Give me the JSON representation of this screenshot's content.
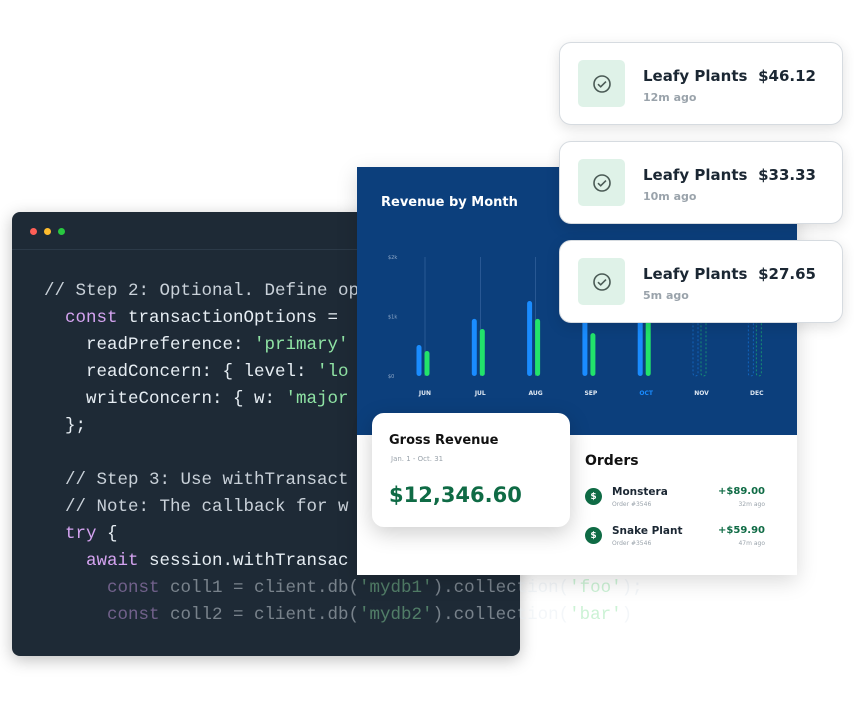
{
  "code_window": {
    "lines": [
      {
        "indent": 0,
        "tokens": [
          [
            "// Step 2: Optional. Define op",
            "comment"
          ]
        ]
      },
      {
        "indent": 1,
        "tokens": [
          [
            "const ",
            "kw"
          ],
          [
            "transactionOptions = ",
            "plain"
          ]
        ]
      },
      {
        "indent": 2,
        "tokens": [
          [
            "readPreference: ",
            "plain"
          ],
          [
            "'primary'",
            "str"
          ]
        ]
      },
      {
        "indent": 2,
        "tokens": [
          [
            "readConcern: { level: ",
            "plain"
          ],
          [
            "'lo",
            "str"
          ]
        ]
      },
      {
        "indent": 2,
        "tokens": [
          [
            "writeConcern: { w: ",
            "plain"
          ],
          [
            "'major",
            "str"
          ]
        ]
      },
      {
        "indent": 1,
        "tokens": [
          [
            "};",
            "plain"
          ]
        ]
      },
      {
        "indent": 0,
        "tokens": []
      },
      {
        "indent": 1,
        "tokens": [
          [
            "// Step 3: Use withTransact",
            "comment"
          ]
        ]
      },
      {
        "indent": 1,
        "tokens": [
          [
            "// Note: The callback for w",
            "comment"
          ]
        ]
      },
      {
        "indent": 1,
        "tokens": [
          [
            "try ",
            "kw"
          ],
          [
            "{",
            "plain"
          ]
        ]
      },
      {
        "indent": 2,
        "tokens": [
          [
            "await ",
            "kw"
          ],
          [
            "session.withTransac",
            "plain"
          ]
        ]
      },
      {
        "indent": 3,
        "faded": true,
        "tokens": [
          [
            "const ",
            "kw"
          ],
          [
            "coll1 = client.db(",
            "plain"
          ],
          [
            "'mydb1'",
            "str"
          ],
          [
            ").collection(",
            "plain"
          ],
          [
            "'foo'",
            "str"
          ],
          [
            ");",
            "plain"
          ]
        ]
      },
      {
        "indent": 3,
        "faded": true,
        "tokens": [
          [
            "const ",
            "kw"
          ],
          [
            "coll2 = client.db(",
            "plain"
          ],
          [
            "'mydb2'",
            "str"
          ],
          [
            ").collection(",
            "plain"
          ],
          [
            "'bar'",
            "str"
          ],
          [
            ")",
            "plain"
          ]
        ]
      }
    ]
  },
  "dashboard": {
    "title": "Revenue by Month",
    "gross": {
      "title": "Gross Revenue",
      "range": "Jan. 1 - Oct. 31",
      "amount": "$12,346.60"
    },
    "orders": {
      "title": "Orders",
      "items": [
        {
          "name": "Monstera",
          "id": "Order #3546",
          "amount": "+$89.00",
          "time": "32m ago"
        },
        {
          "name": "Snake Plant",
          "id": "Order #3546",
          "amount": "+$59.90",
          "time": "47m ago"
        }
      ]
    }
  },
  "notifications": [
    {
      "name": "Leafy Plants",
      "time": "12m ago",
      "amount": "$46.12",
      "icon": "check-circle-icon"
    },
    {
      "name": "Leafy Plants",
      "time": "10m ago",
      "amount": "$33.33",
      "icon": "check-circle-icon"
    },
    {
      "name": "Leafy Plants",
      "time": "5m ago",
      "amount": "$27.65",
      "icon": "check-circle-icon"
    }
  ],
  "colors": {
    "blue_series": "#1a8cff",
    "green_series": "#22e36b",
    "panel": "#0c3f7c",
    "highlight_month": "#1a8cff"
  },
  "chart_data": {
    "type": "bar",
    "title": "Revenue by Month",
    "categories": [
      "JUN",
      "JUL",
      "AUG",
      "SEP",
      "OCT",
      "NOV",
      "DEC"
    ],
    "yticks": [
      "$0",
      "$1k",
      "$2k"
    ],
    "ylim": [
      0,
      2000
    ],
    "highlight": "OCT",
    "projected": [
      "NOV",
      "DEC"
    ],
    "series": [
      {
        "values": [
          520,
          960,
          1260,
          1000,
          1100,
          1200,
          1200
        ]
      },
      {
        "values": [
          420,
          790,
          960,
          720,
          1000,
          1200,
          1200
        ]
      }
    ]
  }
}
